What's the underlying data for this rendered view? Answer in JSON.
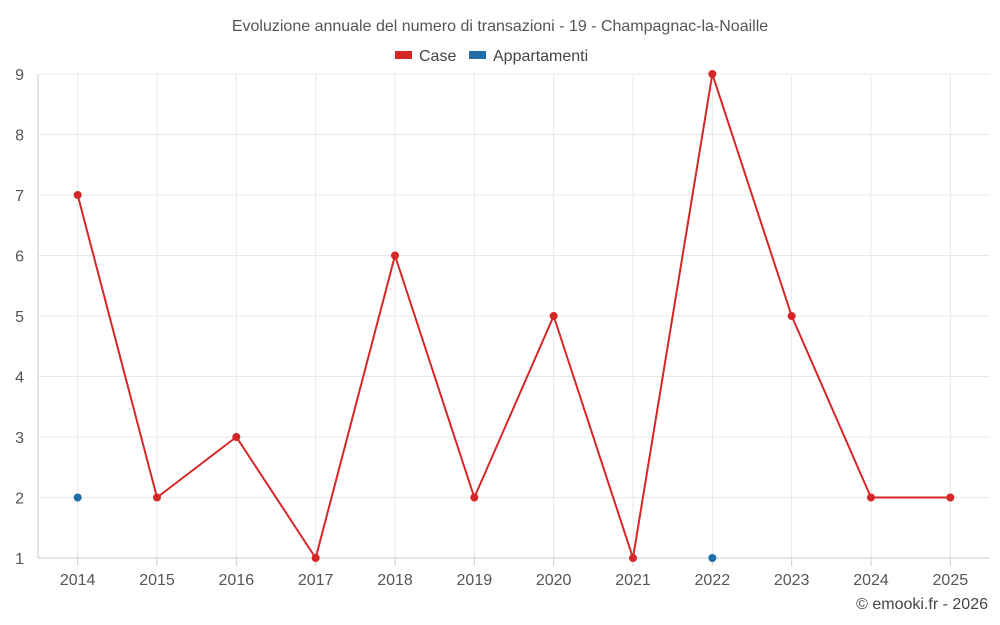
{
  "chart_data": {
    "type": "line",
    "title": "Evoluzione annuale del numero di transazioni - 19 - Champagnac-la-Noaille",
    "xlabel": "",
    "ylabel": "",
    "categories": [
      "2014",
      "2015",
      "2016",
      "2017",
      "2018",
      "2019",
      "2020",
      "2021",
      "2022",
      "2023",
      "2024",
      "2025"
    ],
    "ylim": [
      1,
      9
    ],
    "yticks": [
      1,
      2,
      3,
      4,
      5,
      6,
      7,
      8,
      9
    ],
    "grid": true,
    "legend": "top-center",
    "series": [
      {
        "name": "Case",
        "color": "#d62728",
        "values": [
          7,
          2,
          3,
          1,
          6,
          2,
          5,
          1,
          9,
          5,
          2,
          2
        ],
        "line": true
      },
      {
        "name": "Appartamenti",
        "color": "#1f6ea8",
        "values": [
          2,
          null,
          null,
          null,
          null,
          null,
          null,
          null,
          1,
          null,
          null,
          null
        ],
        "line": false
      }
    ],
    "credit": "© emooki.fr - 2026"
  }
}
